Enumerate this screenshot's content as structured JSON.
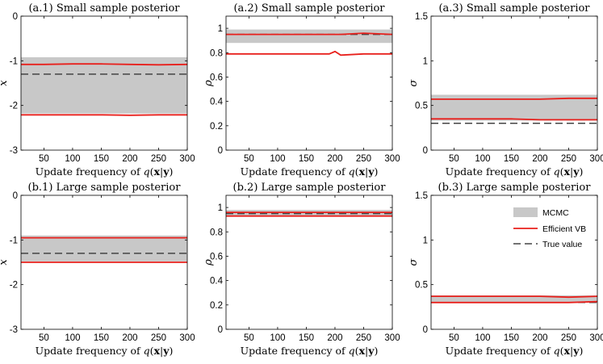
{
  "colors": {
    "band": "#c8c8c8",
    "vb": "#e8201c",
    "truth": "#444444",
    "axis": "#000000"
  },
  "legend": {
    "mcmc": "MCMC",
    "vb": "Efficient VB",
    "truth": "True value"
  },
  "chart_data": [
    {
      "id": "a1",
      "type": "line",
      "title": "(a.1) Small sample posterior",
      "xlabel": "Update frequency of q(x|y)",
      "ylabel": "x̄",
      "xlim": [
        10,
        300
      ],
      "ylim": [
        -3,
        0
      ],
      "xticks": [
        50,
        100,
        150,
        200,
        250,
        300
      ],
      "yticks": [
        -3,
        -2,
        -1,
        0
      ],
      "yticklabels": [
        "-3",
        "-2",
        "-1",
        "0"
      ],
      "x": [
        10,
        50,
        100,
        150,
        200,
        250,
        300
      ],
      "mcmc_band": [
        -2.18,
        -0.92
      ],
      "vb_upper": [
        -1.08,
        -1.08,
        -1.07,
        -1.07,
        -1.08,
        -1.09,
        -1.08
      ],
      "vb_lower": [
        -2.21,
        -2.21,
        -2.21,
        -2.21,
        -2.22,
        -2.21,
        -2.21
      ],
      "true_value": -1.3
    },
    {
      "id": "a2",
      "type": "line",
      "title": "(a.2) Small sample posterior",
      "xlabel": "Update frequency of q(x|y)",
      "ylabel": "ρ",
      "xlim": [
        10,
        300
      ],
      "ylim": [
        0,
        1.1
      ],
      "xticks": [
        50,
        100,
        150,
        200,
        250,
        300
      ],
      "yticks": [
        0,
        0.2,
        0.4,
        0.6,
        0.8,
        1
      ],
      "yticklabels": [
        "0",
        "0.2",
        "0.4",
        "0.6",
        "0.8",
        "1"
      ],
      "x": [
        10,
        50,
        100,
        150,
        190,
        200,
        210,
        250,
        300
      ],
      "mcmc_band": [
        0.88,
        0.99
      ],
      "vb_upper": [
        0.95,
        0.95,
        0.95,
        0.95,
        0.95,
        0.95,
        0.95,
        0.96,
        0.95
      ],
      "vb_lower": [
        0.79,
        0.79,
        0.79,
        0.79,
        0.79,
        0.81,
        0.78,
        0.79,
        0.79
      ],
      "true_value": 0.95
    },
    {
      "id": "a3",
      "type": "line",
      "title": "(a.3) Small sample posterior",
      "xlabel": "Update frequency of q(x|y)",
      "ylabel": "σ",
      "xlim": [
        10,
        300
      ],
      "ylim": [
        0,
        1.5
      ],
      "xticks": [
        50,
        100,
        150,
        200,
        250,
        300
      ],
      "yticks": [
        0,
        0.5,
        1,
        1.5
      ],
      "yticklabels": [
        "0",
        "0.5",
        "1",
        "1.5"
      ],
      "x": [
        10,
        50,
        100,
        150,
        200,
        250,
        300
      ],
      "mcmc_band": [
        0.33,
        0.62
      ],
      "vb_upper": [
        0.57,
        0.57,
        0.57,
        0.57,
        0.57,
        0.58,
        0.58
      ],
      "vb_lower": [
        0.35,
        0.35,
        0.35,
        0.35,
        0.34,
        0.34,
        0.34
      ],
      "true_value": 0.3
    },
    {
      "id": "b1",
      "type": "line",
      "title": "(b.1) Large sample posterior",
      "xlabel": "Update frequency of q(x|y)",
      "ylabel": "x̄",
      "xlim": [
        10,
        300
      ],
      "ylim": [
        -3,
        0
      ],
      "xticks": [
        50,
        100,
        150,
        200,
        250,
        300
      ],
      "yticks": [
        -3,
        -2,
        -1,
        0
      ],
      "yticklabels": [
        "-3",
        "-2",
        "-1",
        "0"
      ],
      "x": [
        10,
        50,
        100,
        150,
        200,
        250,
        300
      ],
      "mcmc_band": [
        -1.48,
        -0.9
      ],
      "vb_upper": [
        -0.95,
        -0.95,
        -0.95,
        -0.95,
        -0.95,
        -0.95,
        -0.95
      ],
      "vb_lower": [
        -1.5,
        -1.5,
        -1.5,
        -1.5,
        -1.5,
        -1.5,
        -1.5
      ],
      "true_value": -1.3
    },
    {
      "id": "b2",
      "type": "line",
      "title": "(b.2) Large sample posterior",
      "xlabel": "Update frequency of q(x|y)",
      "ylabel": "ρ",
      "xlim": [
        10,
        300
      ],
      "ylim": [
        0,
        1.1
      ],
      "xticks": [
        50,
        100,
        150,
        200,
        250,
        300
      ],
      "yticks": [
        0,
        0.2,
        0.4,
        0.6,
        0.8,
        1
      ],
      "yticklabels": [
        "0",
        "0.2",
        "0.4",
        "0.6",
        "0.8",
        "1"
      ],
      "x": [
        10,
        50,
        100,
        150,
        200,
        250,
        300
      ],
      "mcmc_band": [
        0.93,
        0.98
      ],
      "vb_upper": [
        0.96,
        0.96,
        0.96,
        0.96,
        0.96,
        0.96,
        0.96
      ],
      "vb_lower": [
        0.93,
        0.93,
        0.93,
        0.93,
        0.93,
        0.93,
        0.93
      ],
      "true_value": 0.95
    },
    {
      "id": "b3",
      "type": "line",
      "title": "(b.3) Large sample posterior",
      "xlabel": "Update frequency of q(x|y)",
      "ylabel": "σ",
      "xlim": [
        10,
        300
      ],
      "ylim": [
        0,
        1.5
      ],
      "xticks": [
        50,
        100,
        150,
        200,
        250,
        300
      ],
      "yticks": [
        0,
        0.5,
        1,
        1.5
      ],
      "yticklabels": [
        "0",
        "0.5",
        "1",
        "1.5"
      ],
      "x": [
        10,
        50,
        100,
        150,
        200,
        250,
        300
      ],
      "mcmc_band": [
        0.3,
        0.38
      ],
      "vb_upper": [
        0.37,
        0.37,
        0.37,
        0.37,
        0.37,
        0.36,
        0.37
      ],
      "vb_lower": [
        0.3,
        0.3,
        0.3,
        0.3,
        0.3,
        0.3,
        0.31
      ],
      "true_value": 0.3,
      "legend": "top-right"
    }
  ]
}
